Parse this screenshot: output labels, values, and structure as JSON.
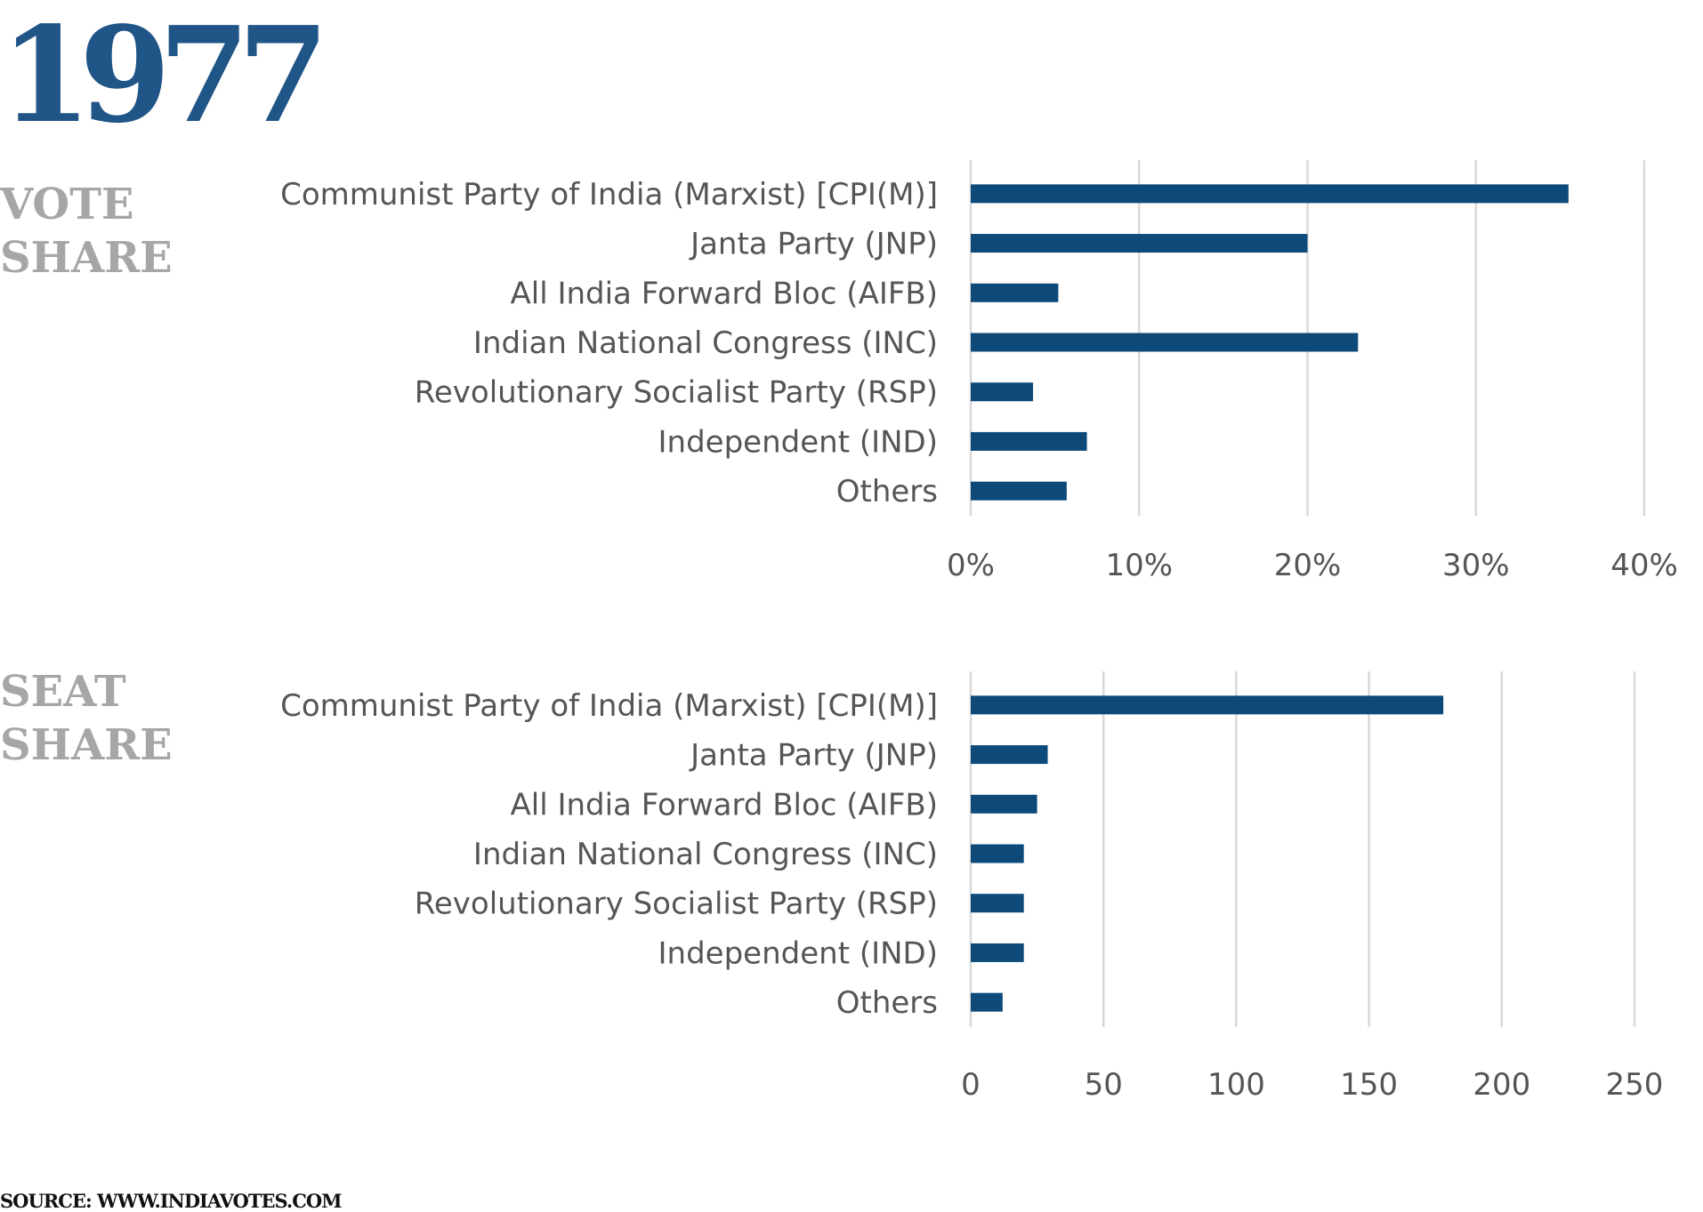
{
  "year": "1977",
  "source": "SOURCE: WWW.INDIAVOTES.COM",
  "colors": {
    "bar": "#0d4a7a",
    "grid": "#d9d9d9",
    "label": "#555555",
    "year": "#1f5587",
    "section": "#a6a6a6"
  },
  "chart_data": [
    {
      "type": "bar",
      "orientation": "horizontal",
      "title": "VOTE SHARE",
      "title_lines": [
        "VOTE",
        "SHARE"
      ],
      "categories": [
        "Communist Party of India (Marxist) [CPI(M)]",
        "Janta Party (JNP)",
        "All India Forward Bloc (AIFB)",
        "Indian National Congress (INC)",
        "Revolutionary Socialist Party (RSP)",
        "Independent (IND)",
        "Others"
      ],
      "values": [
        35.5,
        20.0,
        5.2,
        23.0,
        3.7,
        6.9,
        5.7
      ],
      "unit": "%",
      "xlim": [
        0,
        40
      ],
      "ticks": [
        0,
        10,
        20,
        30,
        40
      ],
      "tick_labels": [
        "0%",
        "10%",
        "20%",
        "30%",
        "40%"
      ],
      "grid": true,
      "legend": "none"
    },
    {
      "type": "bar",
      "orientation": "horizontal",
      "title": "SEAT SHARE",
      "title_lines": [
        "SEAT",
        "SHARE"
      ],
      "categories": [
        "Communist Party of India (Marxist) [CPI(M)]",
        "Janta Party (JNP)",
        "All India Forward Bloc (AIFB)",
        "Indian National Congress (INC)",
        "Revolutionary Socialist Party (RSP)",
        "Independent (IND)",
        "Others"
      ],
      "values": [
        178,
        29,
        25,
        20,
        20,
        20,
        12
      ],
      "xlim": [
        0,
        250
      ],
      "ticks": [
        0,
        50,
        100,
        150,
        200,
        250
      ],
      "tick_labels": [
        "0",
        "50",
        "100",
        "150",
        "200",
        "250"
      ],
      "grid": true,
      "legend": "none"
    }
  ]
}
